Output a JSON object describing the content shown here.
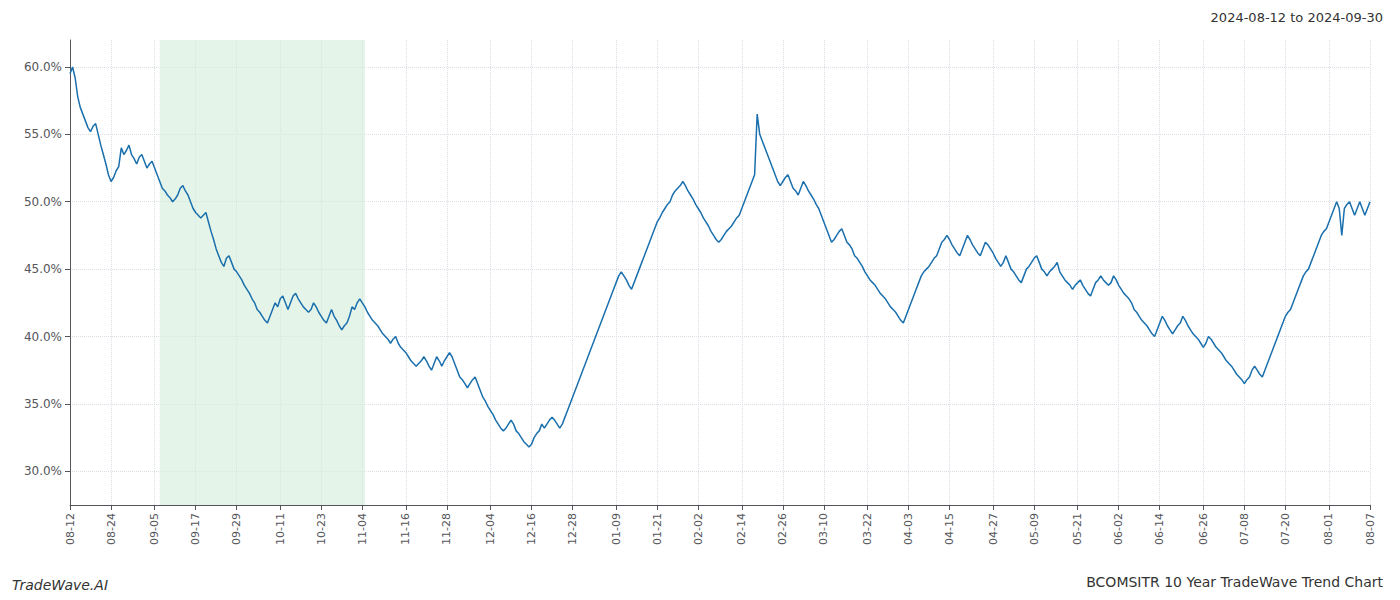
{
  "chart_data": {
    "type": "line",
    "title": "BCOMSITR 10 Year TradeWave Trend Chart",
    "subtitle": "2024-08-12 to 2024-09-30",
    "annotations": [
      "TradeWave.AI"
    ],
    "color": "#1a6fad",
    "grid": true,
    "highlight": {
      "start": 35,
      "end": 115,
      "color": "#d4edda"
    },
    "ylim": [
      27.5,
      62.0
    ],
    "yticks": [
      {
        "value": 30.0,
        "label": "30.0%"
      },
      {
        "value": 35.0,
        "label": "35.0%"
      },
      {
        "value": 40.0,
        "label": "40.0%"
      },
      {
        "value": 45.0,
        "label": "45.0%"
      },
      {
        "value": 50.0,
        "label": "50.0%"
      },
      {
        "value": 55.0,
        "label": "55.0%"
      },
      {
        "value": 60.0,
        "label": "60.0%"
      }
    ],
    "categories": [
      "08-12",
      null,
      null,
      null,
      null,
      null,
      null,
      null,
      null,
      null,
      null,
      null,
      null,
      null,
      null,
      null,
      "08-24",
      null,
      null,
      null,
      null,
      null,
      null,
      null,
      null,
      null,
      null,
      null,
      null,
      null,
      null,
      null,
      null,
      "09-05",
      null,
      null,
      null,
      null,
      null,
      null,
      null,
      null,
      null,
      null,
      null,
      null,
      null,
      null,
      null,
      "09-17",
      null,
      null,
      null,
      null,
      null,
      null,
      null,
      null,
      null,
      null,
      null,
      null,
      null,
      null,
      null,
      "09-29",
      null,
      null,
      null,
      null,
      null,
      null,
      null,
      null,
      null,
      null,
      null,
      null,
      null,
      null,
      null,
      null,
      "10-11",
      null,
      null,
      null,
      null,
      null,
      null,
      null,
      null,
      null,
      null,
      null,
      null,
      null,
      null,
      null,
      "10-23",
      null,
      null,
      null,
      null,
      null,
      null,
      null,
      null,
      null,
      null,
      null,
      null,
      null,
      null,
      null,
      "11-04",
      null,
      null,
      null,
      null,
      null,
      null,
      null,
      null,
      null,
      null,
      null,
      null,
      null,
      null,
      null,
      null,
      "11-16",
      null,
      null,
      null,
      null,
      null,
      null,
      null,
      null,
      null,
      null,
      null,
      null,
      null,
      null,
      null,
      "11-28",
      null,
      null,
      null,
      null,
      null,
      null,
      null,
      null,
      null,
      null,
      null,
      null,
      null,
      null,
      null,
      null,
      "12-04",
      null,
      null,
      null,
      null,
      null,
      null,
      null,
      null,
      null,
      null,
      null,
      null,
      null,
      null,
      null,
      "12-16",
      null,
      null,
      null,
      null,
      null,
      null,
      null,
      null,
      null,
      null,
      null,
      null,
      null,
      null,
      null,
      "12-28",
      null,
      null,
      null,
      null,
      null,
      null,
      null,
      null,
      null,
      null,
      null,
      null,
      null,
      null,
      null,
      null,
      "01-09",
      null,
      null,
      null,
      null,
      null,
      null,
      null,
      null,
      null,
      null,
      null,
      null,
      null,
      null,
      null,
      "01-21",
      null,
      null,
      null,
      null,
      null,
      null,
      null,
      null,
      null,
      null,
      null,
      null,
      null,
      null,
      null,
      "02-02",
      null,
      null,
      null,
      null,
      null,
      null,
      null,
      null,
      null,
      null,
      null,
      null,
      null,
      null,
      null,
      null,
      "02-14",
      null,
      null,
      null,
      null,
      null,
      null,
      null,
      null,
      null,
      null,
      null,
      null,
      null,
      null,
      null,
      "02-26",
      null,
      null,
      null,
      null,
      null,
      null,
      null,
      null,
      null,
      null,
      null,
      null,
      null,
      null,
      null,
      "03-10",
      null,
      null,
      null,
      null,
      null,
      null,
      null,
      null,
      null,
      null,
      null,
      null,
      null,
      null,
      null,
      null,
      "03-22",
      null,
      null,
      null,
      null,
      null,
      null,
      null,
      null,
      null,
      null,
      null,
      null,
      null,
      null,
      null,
      "04-03",
      null,
      null,
      null,
      null,
      null,
      null,
      null,
      null,
      null,
      null,
      null,
      null,
      null,
      null,
      null,
      "04-15",
      null,
      null,
      null,
      null,
      null,
      null,
      null,
      null,
      null,
      null,
      null,
      null,
      null,
      null,
      null,
      null,
      "04-27",
      null,
      null,
      null,
      null,
      null,
      null,
      null,
      null,
      null,
      null,
      null,
      null,
      null,
      null,
      null,
      "05-09",
      null,
      null,
      null,
      null,
      null,
      null,
      null,
      null,
      null,
      null,
      null,
      null,
      null,
      null,
      null,
      null,
      "05-21",
      null,
      null,
      null,
      null,
      null,
      null,
      null,
      null,
      null,
      null,
      null,
      null,
      null,
      null,
      null,
      "06-02",
      null,
      null,
      null,
      null,
      null,
      null,
      null,
      null,
      null,
      null,
      null,
      null,
      null,
      null,
      null,
      "06-14",
      null,
      null,
      null,
      null,
      null,
      null,
      null,
      null,
      null,
      null,
      null,
      null,
      null,
      null,
      null,
      null,
      "06-26",
      null,
      null,
      null,
      null,
      null,
      null,
      null,
      null,
      null,
      null,
      null,
      null,
      null,
      null,
      null,
      "07-08",
      null,
      null,
      null,
      null,
      null,
      null,
      null,
      null,
      null,
      null,
      null,
      null,
      null,
      null,
      null,
      "07-20",
      null,
      null,
      null,
      null,
      null,
      null,
      null,
      null,
      null,
      null,
      null,
      null,
      null,
      null,
      null,
      null,
      "08-01",
      null,
      null,
      null,
      null,
      null,
      null,
      null,
      null,
      null,
      null,
      null,
      null,
      null,
      null,
      null,
      "08-07"
    ],
    "values": [
      59.5,
      60.0,
      59.2,
      57.8,
      57.0,
      56.5,
      56.0,
      55.5,
      55.2,
      55.6,
      55.8,
      55.0,
      54.2,
      53.5,
      52.8,
      52.0,
      51.5,
      51.8,
      52.3,
      52.6,
      54.0,
      53.5,
      53.8,
      54.2,
      53.5,
      53.2,
      52.8,
      53.3,
      53.5,
      53.0,
      52.5,
      52.8,
      53.0,
      52.5,
      52.0,
      51.5,
      51.0,
      50.8,
      50.5,
      50.3,
      50.0,
      50.2,
      50.5,
      51.0,
      51.2,
      50.8,
      50.5,
      50.0,
      49.5,
      49.2,
      49.0,
      48.8,
      49.0,
      49.2,
      48.5,
      47.8,
      47.2,
      46.5,
      46.0,
      45.5,
      45.2,
      45.8,
      46.0,
      45.5,
      45.0,
      44.8,
      44.5,
      44.2,
      43.8,
      43.5,
      43.2,
      42.8,
      42.5,
      42.0,
      41.8,
      41.5,
      41.2,
      41.0,
      41.5,
      42.0,
      42.5,
      42.2,
      42.8,
      43.0,
      42.5,
      42.0,
      42.5,
      43.0,
      43.2,
      42.8,
      42.5,
      42.2,
      42.0,
      41.8,
      42.0,
      42.5,
      42.2,
      41.8,
      41.5,
      41.2,
      41.0,
      41.5,
      42.0,
      41.5,
      41.2,
      40.8,
      40.5,
      40.8,
      41.0,
      41.5,
      42.2,
      42.0,
      42.5,
      42.8,
      42.5,
      42.2,
      41.8,
      41.5,
      41.2,
      41.0,
      40.8,
      40.5,
      40.2,
      40.0,
      39.8,
      39.5,
      39.8,
      40.0,
      39.5,
      39.2,
      39.0,
      38.8,
      38.5,
      38.2,
      38.0,
      37.8,
      38.0,
      38.2,
      38.5,
      38.2,
      37.8,
      37.5,
      38.0,
      38.5,
      38.2,
      37.8,
      38.2,
      38.5,
      38.8,
      38.5,
      38.0,
      37.5,
      37.0,
      36.8,
      36.5,
      36.2,
      36.5,
      36.8,
      37.0,
      36.5,
      36.0,
      35.5,
      35.2,
      34.8,
      34.5,
      34.2,
      33.8,
      33.5,
      33.2,
      33.0,
      33.2,
      33.5,
      33.8,
      33.5,
      33.0,
      32.8,
      32.5,
      32.2,
      32.0,
      31.8,
      32.0,
      32.5,
      32.8,
      33.0,
      33.5,
      33.2,
      33.5,
      33.8,
      34.0,
      33.8,
      33.5,
      33.2,
      33.5,
      34.0,
      34.5,
      35.0,
      35.5,
      36.0,
      36.5,
      37.0,
      37.5,
      38.0,
      38.5,
      39.0,
      39.5,
      40.0,
      40.5,
      41.0,
      41.5,
      42.0,
      42.5,
      43.0,
      43.5,
      44.0,
      44.5,
      44.8,
      44.5,
      44.2,
      43.8,
      43.5,
      44.0,
      44.5,
      45.0,
      45.5,
      46.0,
      46.5,
      47.0,
      47.5,
      48.0,
      48.5,
      48.8,
      49.2,
      49.5,
      49.8,
      50.0,
      50.5,
      50.8,
      51.0,
      51.2,
      51.5,
      51.2,
      50.8,
      50.5,
      50.2,
      49.8,
      49.5,
      49.2,
      48.8,
      48.5,
      48.2,
      47.8,
      47.5,
      47.2,
      47.0,
      47.2,
      47.5,
      47.8,
      48.0,
      48.2,
      48.5,
      48.8,
      49.0,
      49.5,
      50.0,
      50.5,
      51.0,
      51.5,
      52.0,
      56.5,
      55.0,
      54.5,
      54.0,
      53.5,
      53.0,
      52.5,
      52.0,
      51.5,
      51.2,
      51.5,
      51.8,
      52.0,
      51.5,
      51.0,
      50.8,
      50.5,
      51.0,
      51.5,
      51.2,
      50.8,
      50.5,
      50.2,
      49.8,
      49.5,
      49.0,
      48.5,
      48.0,
      47.5,
      47.0,
      47.2,
      47.5,
      47.8,
      48.0,
      47.5,
      47.0,
      46.8,
      46.5,
      46.0,
      45.8,
      45.5,
      45.2,
      44.8,
      44.5,
      44.2,
      44.0,
      43.8,
      43.5,
      43.2,
      43.0,
      42.8,
      42.5,
      42.2,
      42.0,
      41.8,
      41.5,
      41.2,
      41.0,
      41.5,
      42.0,
      42.5,
      43.0,
      43.5,
      44.0,
      44.5,
      44.8,
      45.0,
      45.2,
      45.5,
      45.8,
      46.0,
      46.5,
      47.0,
      47.2,
      47.5,
      47.2,
      46.8,
      46.5,
      46.2,
      46.0,
      46.5,
      47.0,
      47.5,
      47.2,
      46.8,
      46.5,
      46.2,
      46.0,
      46.5,
      47.0,
      46.8,
      46.5,
      46.2,
      45.8,
      45.5,
      45.2,
      45.5,
      46.0,
      45.5,
      45.0,
      44.8,
      44.5,
      44.2,
      44.0,
      44.5,
      45.0,
      45.2,
      45.5,
      45.8,
      46.0,
      45.5,
      45.0,
      44.8,
      44.5,
      44.8,
      45.0,
      45.2,
      45.5,
      44.8,
      44.5,
      44.2,
      44.0,
      43.8,
      43.5,
      43.8,
      44.0,
      44.2,
      43.8,
      43.5,
      43.2,
      43.0,
      43.5,
      44.0,
      44.2,
      44.5,
      44.2,
      44.0,
      43.8,
      44.0,
      44.5,
      44.2,
      43.8,
      43.5,
      43.2,
      43.0,
      42.8,
      42.5,
      42.0,
      41.8,
      41.5,
      41.2,
      41.0,
      40.8,
      40.5,
      40.2,
      40.0,
      40.5,
      41.0,
      41.5,
      41.2,
      40.8,
      40.5,
      40.2,
      40.5,
      40.8,
      41.0,
      41.5,
      41.2,
      40.8,
      40.5,
      40.2,
      40.0,
      39.8,
      39.5,
      39.2,
      39.5,
      40.0,
      39.8,
      39.5,
      39.2,
      39.0,
      38.8,
      38.5,
      38.2,
      38.0,
      37.8,
      37.5,
      37.2,
      37.0,
      36.8,
      36.5,
      36.8,
      37.0,
      37.5,
      37.8,
      37.5,
      37.2,
      37.0,
      37.5,
      38.0,
      38.5,
      39.0,
      39.5,
      40.0,
      40.5,
      41.0,
      41.5,
      41.8,
      42.0,
      42.5,
      43.0,
      43.5,
      44.0,
      44.5,
      44.8,
      45.0,
      45.5,
      46.0,
      46.5,
      47.0,
      47.5,
      47.8,
      48.0,
      48.5,
      49.0,
      49.5,
      50.0,
      49.5,
      47.5,
      49.5,
      49.8,
      50.0,
      49.5,
      49.0,
      49.5,
      50.0,
      49.5,
      49.0,
      49.5,
      50.0
    ]
  }
}
